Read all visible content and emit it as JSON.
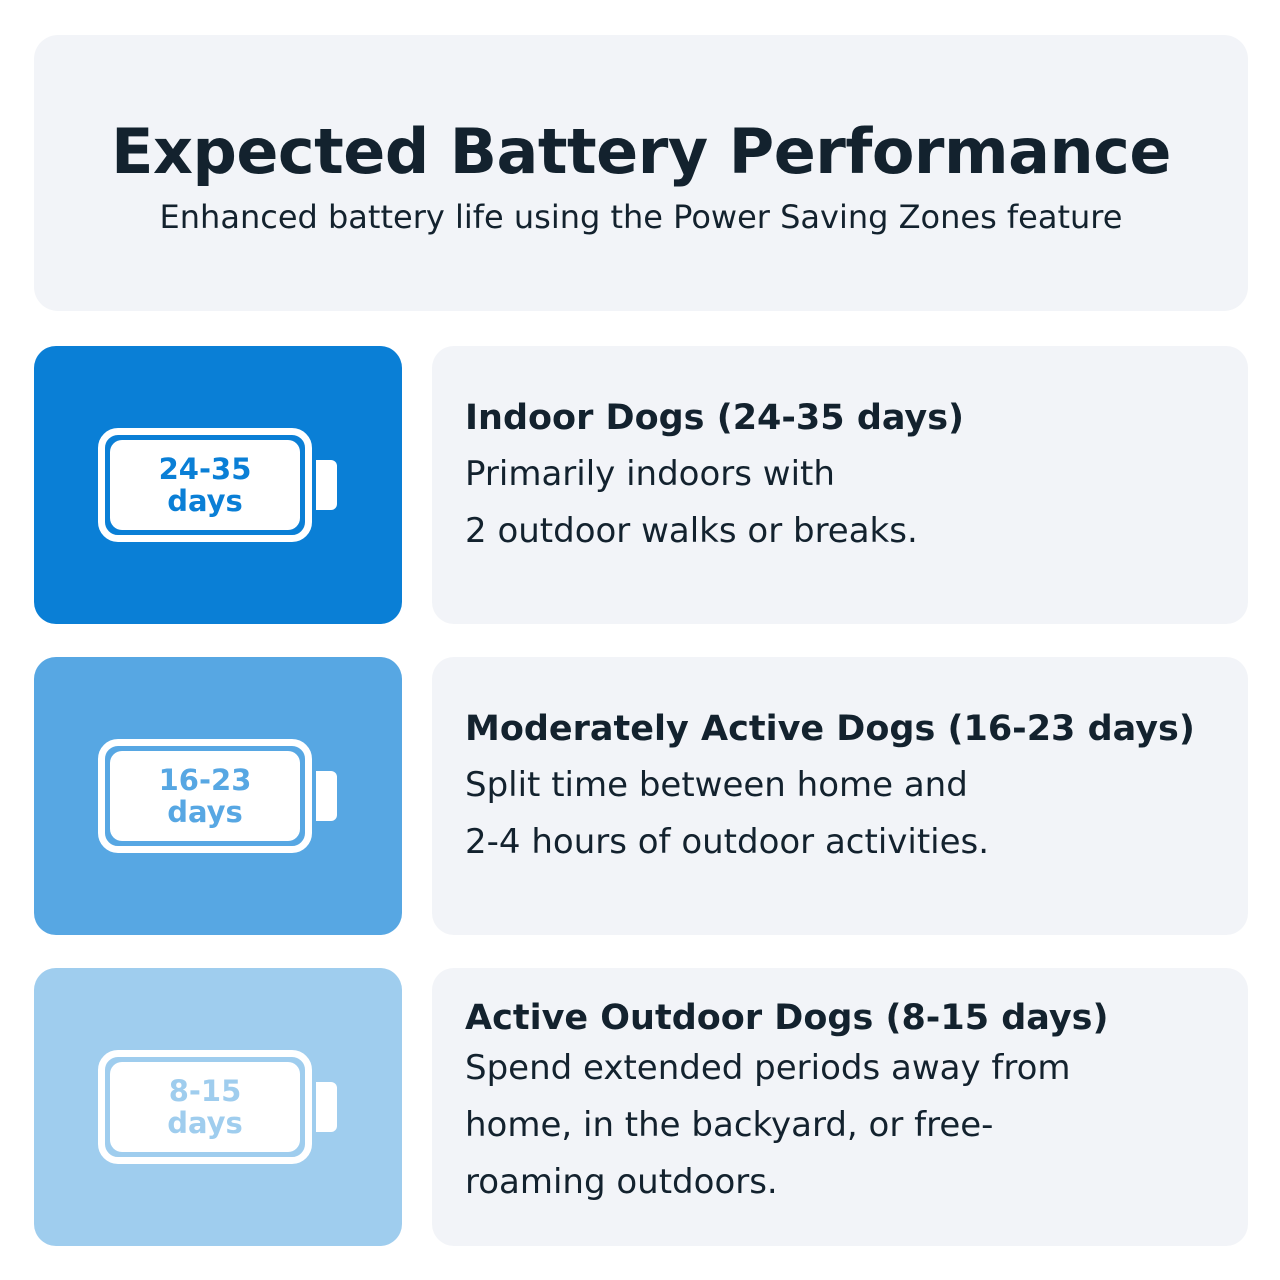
{
  "header": {
    "title": "Expected Battery Performance",
    "subtitle": "Enhanced battery life using the Power Saving Zones feature"
  },
  "rows": [
    {
      "range": "24-35",
      "unit": "days",
      "title": "Indoor Dogs (24-35 days)",
      "desc": "Primarily indoors with\n2 outdoor walks or breaks.",
      "color": "#0a7fd6"
    },
    {
      "range": "16-23",
      "unit": "days",
      "title": "Moderately Active Dogs (16-23 days)",
      "desc": "Split time between home and\n2-4 hours of outdoor activities.",
      "color": "#57a7e3"
    },
    {
      "range": "8-15",
      "unit": "days",
      "title": "Active Outdoor Dogs (8-15 days)",
      "desc": "Spend extended periods away from\nhome, in the backyard, or free-\nroaming outdoors.",
      "color": "#9fcdee"
    }
  ]
}
